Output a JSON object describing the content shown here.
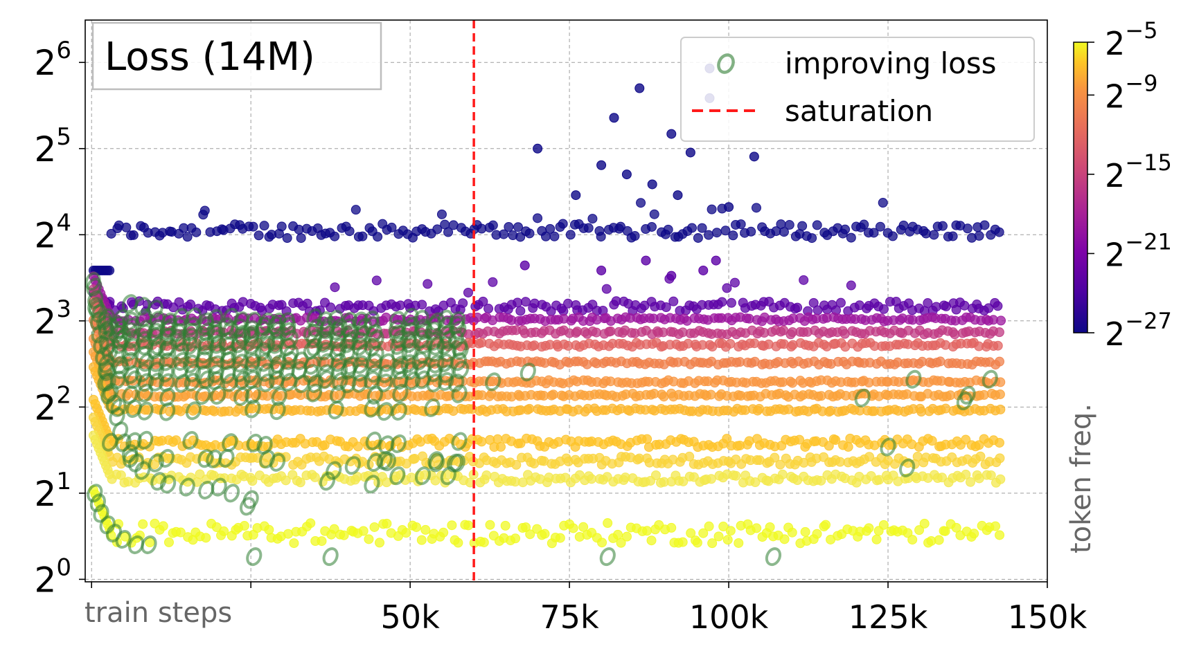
{
  "chart_data": {
    "type": "scatter",
    "title": "Loss (14M)",
    "xlabel": "train steps",
    "ylabel": "",
    "x_scale": "linear",
    "y_scale": "log2",
    "xlim": [
      -1000,
      150000
    ],
    "ylim": [
      0.98,
      90
    ],
    "x_ticks": [
      {
        "value": 0,
        "label": ""
      },
      {
        "value": 25000,
        "label": ""
      },
      {
        "value": 50000,
        "label": "50k"
      },
      {
        "value": 75000,
        "label": "75k"
      },
      {
        "value": 100000,
        "label": "100k"
      },
      {
        "value": 125000,
        "label": "125k"
      },
      {
        "value": 150000,
        "label": "150k"
      }
    ],
    "y_ticks": [
      {
        "value": 1,
        "base": "2",
        "exp": "0"
      },
      {
        "value": 2,
        "base": "2",
        "exp": "1"
      },
      {
        "value": 4,
        "base": "2",
        "exp": "2"
      },
      {
        "value": 8,
        "base": "2",
        "exp": "3"
      },
      {
        "value": 16,
        "base": "2",
        "exp": "4"
      },
      {
        "value": 32,
        "base": "2",
        "exp": "5"
      },
      {
        "value": 64,
        "base": "2",
        "exp": "6"
      }
    ],
    "grid": true,
    "legend_position": "top-right",
    "legend": [
      {
        "label": "improving loss",
        "marker": "o",
        "color": "#2e7d32"
      },
      {
        "label": "saturation",
        "marker": "dashed-line",
        "color": "#ff0000"
      }
    ],
    "saturation_step": 60000,
    "colorbar": {
      "label": "token freq.",
      "colormap": "plasma",
      "ticks": [
        {
          "base": "2",
          "exp": "−5"
        },
        {
          "base": "2",
          "exp": "−9"
        },
        {
          "base": "2",
          "exp": "−15"
        },
        {
          "base": "2",
          "exp": "−21"
        },
        {
          "base": "2",
          "exp": "−27"
        }
      ],
      "tick_exponents": [
        -5,
        -9,
        -15,
        -21,
        -27
      ],
      "range_exponents": [
        -27,
        -5
      ]
    },
    "series": [
      {
        "name": "",
        "color": "#0d0887",
        "base_loss": 16.5,
        "spread": 0.07,
        "x_end": 143000,
        "spikes": [
          [
            70000,
            32
          ],
          [
            82000,
            41
          ],
          [
            86000,
            52
          ],
          [
            80000,
            28
          ],
          [
            91000,
            36
          ],
          [
            97000,
            61
          ],
          [
            94000,
            31
          ],
          [
            104000,
            30
          ],
          [
            88000,
            24
          ],
          [
            76000,
            22
          ],
          [
            84000,
            26
          ],
          [
            100000,
            20
          ],
          [
            92000,
            22
          ],
          [
            97000,
            48
          ]
        ]
      },
      {
        "name": "",
        "color": "#5c01a6",
        "base_loss": 9.0,
        "spread": 0.06,
        "x_end": 143000,
        "spikes": [
          [
            68000,
            12.5
          ],
          [
            80000,
            12
          ],
          [
            87000,
            13
          ],
          [
            96000,
            12
          ],
          [
            98000,
            13
          ],
          [
            91000,
            11.5
          ]
        ]
      },
      {
        "name": "",
        "color": "#9c179e",
        "base_loss": 8.1,
        "spread": 0.025,
        "x_end": 143000,
        "spikes": []
      },
      {
        "name": "",
        "color": "#c03a83",
        "base_loss": 7.3,
        "spread": 0.025,
        "x_end": 143000,
        "spikes": []
      },
      {
        "name": "",
        "color": "#e16462",
        "base_loss": 6.6,
        "spread": 0.025,
        "x_end": 143000,
        "spikes": []
      },
      {
        "name": "",
        "color": "#f0804a",
        "base_loss": 5.7,
        "spread": 0.02,
        "x_end": 143000,
        "spikes": []
      },
      {
        "name": "",
        "color": "#f89540",
        "base_loss": 4.9,
        "spread": 0.02,
        "x_end": 143000,
        "spikes": []
      },
      {
        "name": "",
        "color": "#fba238",
        "base_loss": 4.4,
        "spread": 0.02,
        "x_end": 143000,
        "spikes": []
      },
      {
        "name": "",
        "color": "#fcb72c",
        "base_loss": 3.9,
        "spread": 0.02,
        "x_end": 143000,
        "spikes": []
      },
      {
        "name": "",
        "color": "#fdc328",
        "base_loss": 3.0,
        "spread": 0.05,
        "x_end": 143000,
        "spikes": []
      },
      {
        "name": "",
        "color": "#f9d43c",
        "base_loss": 2.6,
        "spread": 0.05,
        "x_end": 143000,
        "spikes": []
      },
      {
        "name": "",
        "color": "#f3e84c",
        "base_loss": 2.25,
        "spread": 0.05,
        "x_end": 143000,
        "spikes": []
      },
      {
        "name": "",
        "color": "#f0f921",
        "base_loss": 1.45,
        "spread": 0.12,
        "x_end": 143000,
        "spikes": []
      }
    ],
    "improving_loss_points": [
      [
        200,
        11.0
      ],
      [
        400,
        10.5
      ],
      [
        600,
        9.5
      ],
      [
        800,
        8.8
      ],
      [
        1000,
        8.0
      ],
      [
        1200,
        7.2
      ],
      [
        1500,
        6.6
      ],
      [
        1800,
        6.0
      ],
      [
        2200,
        5.4
      ],
      [
        2600,
        4.9
      ],
      [
        3000,
        4.5
      ],
      [
        3500,
        4.1
      ],
      [
        4000,
        3.7
      ],
      [
        4500,
        3.3
      ],
      [
        5000,
        3.0
      ],
      [
        6000,
        2.75
      ],
      [
        7000,
        2.55
      ],
      [
        8000,
        2.4
      ],
      [
        500,
        2.0
      ],
      [
        1000,
        1.85
      ],
      [
        1500,
        1.7
      ],
      [
        2500,
        1.55
      ],
      [
        3500,
        1.45
      ],
      [
        5000,
        1.38
      ],
      [
        7000,
        1.32
      ],
      [
        9000,
        1.32
      ],
      [
        600,
        9.0
      ],
      [
        1200,
        8.5
      ],
      [
        2000,
        8.0
      ],
      [
        3000,
        7.6
      ],
      [
        4000,
        7.2
      ],
      [
        5000,
        7.0
      ],
      [
        6000,
        9.2
      ],
      [
        8000,
        9.0
      ],
      [
        10000,
        8.8
      ],
      [
        25500,
        1.2
      ],
      [
        37500,
        1.2
      ],
      [
        81000,
        1.2
      ],
      [
        107000,
        1.2
      ],
      [
        25000,
        1.9
      ],
      [
        24500,
        1.8
      ],
      [
        22000,
        2.0
      ],
      [
        20000,
        2.1
      ],
      [
        18000,
        2.05
      ],
      [
        15000,
        2.1
      ],
      [
        12000,
        2.15
      ],
      [
        10500,
        2.2
      ],
      [
        37000,
        2.2
      ],
      [
        44000,
        2.15
      ],
      [
        48000,
        2.3
      ],
      [
        52000,
        2.3
      ],
      [
        56000,
        2.3
      ],
      [
        38000,
        2.4
      ],
      [
        41000,
        2.5
      ],
      [
        46000,
        2.6
      ],
      [
        54000,
        2.6
      ],
      [
        57000,
        2.55
      ],
      [
        63000,
        4.9
      ],
      [
        68500,
        5.3
      ],
      [
        129000,
        5.0
      ],
      [
        141000,
        5.0
      ],
      [
        121000,
        4.3
      ],
      [
        137500,
        4.4
      ],
      [
        137000,
        4.2
      ],
      [
        125000,
        2.9
      ],
      [
        128000,
        2.45
      ]
    ],
    "improving_loss_band": {
      "x_start": 0,
      "x_end": 59000,
      "levels": [
        8.1,
        7.6,
        7.3,
        6.9,
        6.6,
        6.2,
        5.7,
        5.3,
        4.9,
        4.4,
        3.9,
        3.0,
        2.6
      ],
      "gaps": [
        [
          31500,
          34000
        ],
        [
          45500,
          46500
        ]
      ]
    }
  }
}
